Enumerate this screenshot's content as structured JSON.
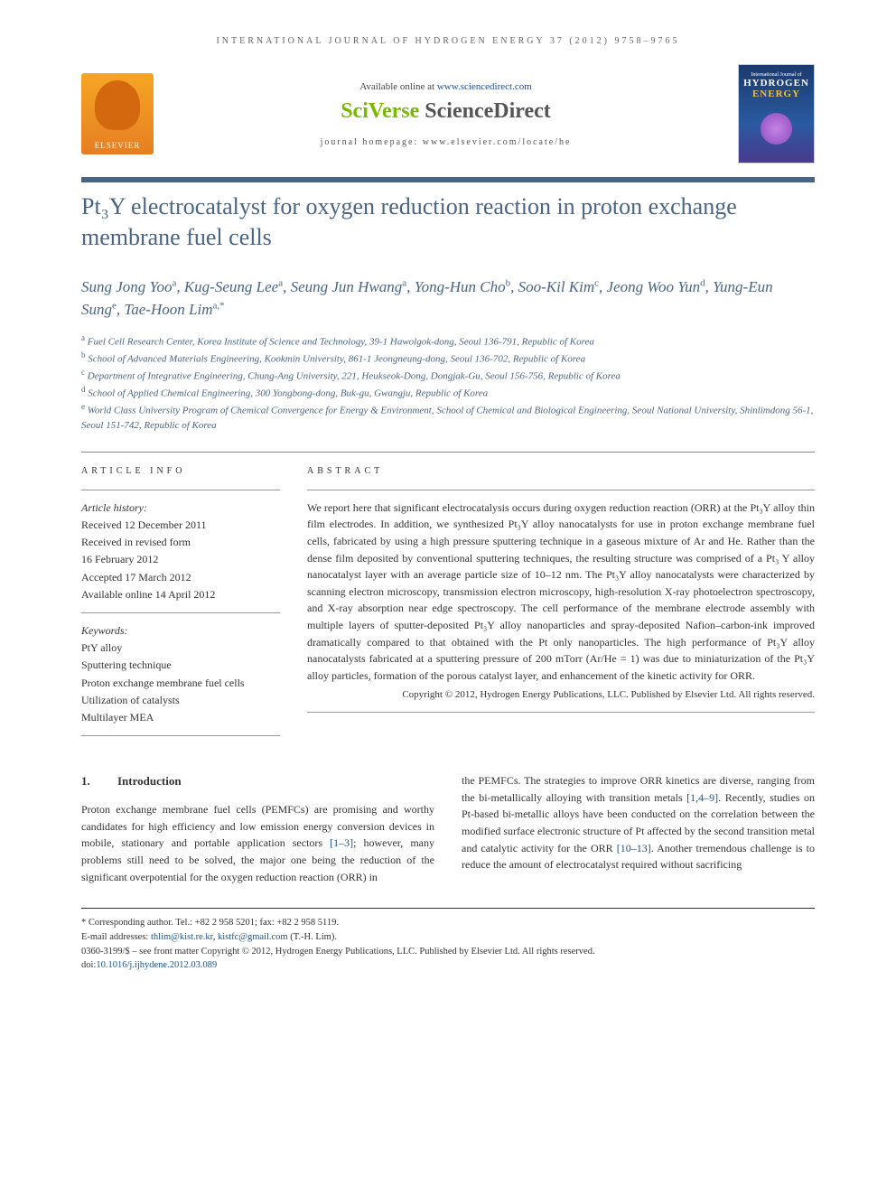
{
  "running_header": "INTERNATIONAL JOURNAL OF HYDROGEN ENERGY 37 (2012) 9758–9765",
  "banner": {
    "elsevier": "ELSEVIER",
    "available": "Available online at ",
    "available_link": "www.sciencedirect.com",
    "sciverse_a": "SciVerse ",
    "sciverse_b": "ScienceDirect",
    "homepage": "journal homepage: www.elsevier.com/locate/he",
    "cover_line1": "International Journal of",
    "cover_line2": "HYDROGEN",
    "cover_line3": "ENERGY"
  },
  "title": "Pt₃Y electrocatalyst for oxygen reduction reaction in proton exchange membrane fuel cells",
  "authors_html": "Sung Jong Yoo<sup>a</sup>, Kug-Seung Lee<sup>a</sup>, Seung Jun Hwang<sup>a</sup>, Yong-Hun Cho<sup>b</sup>, Soo-Kil Kim<sup>c</sup>, Jeong Woo Yun<sup>d</sup>, Yung-Eun Sung<sup>e</sup>, Tae-Hoon Lim<sup>a,*</sup>",
  "affiliations": [
    {
      "sup": "a",
      "text": "Fuel Cell Research Center, Korea Institute of Science and Technology, 39-1 Hawolgok-dong, Seoul 136-791, Republic of Korea"
    },
    {
      "sup": "b",
      "text": "School of Advanced Materials Engineering, Kookmin University, 861-1 Jeongneung-dong, Seoul 136-702, Republic of Korea"
    },
    {
      "sup": "c",
      "text": "Department of Integrative Engineering, Chung-Ang University, 221, Heukseok-Dong, Dongjak-Gu, Seoul 156-756, Republic of Korea"
    },
    {
      "sup": "d",
      "text": "School of Applied Chemical Engineering, 300 Yongbong-dong, Buk-gu, Gwangju, Republic of Korea"
    },
    {
      "sup": "e",
      "text": "World Class University Program of Chemical Convergence for Energy & Environment, School of Chemical and Biological Engineering, Seoul National University, Shinlimdong 56-1, Seoul 151-742, Republic of Korea"
    }
  ],
  "article_info": {
    "heading": "ARTICLE INFO",
    "history_label": "Article history:",
    "history": [
      "Received 12 December 2011",
      "Received in revised form",
      "16 February 2012",
      "Accepted 17 March 2012",
      "Available online 14 April 2012"
    ],
    "keywords_label": "Keywords:",
    "keywords": [
      "PtY alloy",
      "Sputtering technique",
      "Proton exchange membrane fuel cells",
      "Utilization of catalysts",
      "Multilayer MEA"
    ]
  },
  "abstract": {
    "heading": "ABSTRACT",
    "text": "We report here that significant electrocatalysis occurs during oxygen reduction reaction (ORR) at the Pt₃Y alloy thin film electrodes. In addition, we synthesized Pt₃Y alloy nanocatalysts for use in proton exchange membrane fuel cells, fabricated by using a high pressure sputtering technique in a gaseous mixture of Ar and He. Rather than the dense film deposited by conventional sputtering techniques, the resulting structure was comprised of a Pt₃ Y alloy nanocatalyst layer with an average particle size of 10–12 nm. The Pt₃Y alloy nanocatalysts were characterized by scanning electron microscopy, transmission electron microscopy, high-resolution X-ray photoelectron spectroscopy, and X-ray absorption near edge spectroscopy. The cell performance of the membrane electrode assembly with multiple layers of sputter-deposited Pt₃Y alloy nanoparticles and spray-deposited Nafion–carbon-ink improved dramatically compared to that obtained with the Pt only nanoparticles. The high performance of Pt₃Y alloy nanocatalysts fabricated at a sputtering pressure of 200 mTorr (Ar/He = 1) was due to miniaturization of the Pt₃Y alloy particles, formation of the porous catalyst layer, and enhancement of the kinetic activity for ORR.",
    "copyright": "Copyright © 2012, Hydrogen Energy Publications, LLC. Published by Elsevier Ltd. All rights reserved."
  },
  "section1": {
    "num": "1.",
    "title": "Introduction",
    "col1": "Proton exchange membrane fuel cells (PEMFCs) are promising and worthy candidates for high efficiency and low emission energy conversion devices in mobile, stationary and portable application sectors [1–3]; however, many problems still need to be solved, the major one being the reduction of the significant overpotential for the oxygen reduction reaction (ORR) in",
    "col2": "the PEMFCs. The strategies to improve ORR kinetics are diverse, ranging from the bi-metallically alloying with transition metals [1,4–9]. Recently, studies on Pt-based bi-metallic alloys have been conducted on the correlation between the modified surface electronic structure of Pt affected by the second transition metal and catalytic activity for the ORR [10–13]. Another tremendous challenge is to reduce the amount of electrocatalyst required without sacrificing",
    "ref1": "[1–3]",
    "ref2": "[1,4–9]",
    "ref3": "[10–13]"
  },
  "footer": {
    "corresponding_label": "* Corresponding author.",
    "tel": " Tel.: +82 2 958 5201; fax: +82 2 958 5119.",
    "email_label": "E-mail addresses: ",
    "email1": "thlim@kist.re.kr",
    "email2": "kistfc@gmail.com",
    "email_suffix": " (T.-H. Lim).",
    "issn": "0360-3199/$ – see front matter Copyright © 2012, Hydrogen Energy Publications, LLC. Published by Elsevier Ltd. All rights reserved.",
    "doi_label": "doi:",
    "doi": "10.1016/j.ijhydene.2012.03.089"
  },
  "colors": {
    "title_color": "#4a6584",
    "link_color": "#1a5490",
    "stripe_color": "#4a6584"
  }
}
